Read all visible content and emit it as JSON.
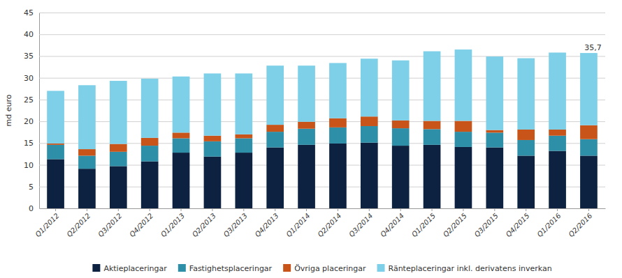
{
  "chart_data": {
    "type": "bar",
    "stacked": true,
    "categories": [
      "Q1/2012",
      "Q2/2012",
      "Q3/2012",
      "Q4/2012",
      "Q1/2013",
      "Q2/2013",
      "Q3/2013",
      "Q4/2013",
      "Q1/2014",
      "Q2/2014",
      "Q3/2014",
      "Q4/2014",
      "Q1/2015",
      "Q2/2015",
      "Q3/2015",
      "Q4/2015",
      "Q1/2016",
      "Q2/2016"
    ],
    "series": [
      {
        "name": "Aktieplaceringar",
        "color": "#0d2240",
        "values": [
          11.3,
          9.1,
          9.7,
          10.8,
          12.8,
          11.9,
          12.8,
          14.0,
          14.6,
          14.9,
          15.1,
          14.4,
          14.6,
          14.1,
          14.0,
          12.1,
          13.2,
          12.1
        ]
      },
      {
        "name": "Fastighetsplaceringar",
        "color": "#2e8fa8",
        "values": [
          3.3,
          3.0,
          3.3,
          3.6,
          3.3,
          3.5,
          3.3,
          3.6,
          3.7,
          3.7,
          3.8,
          4.0,
          3.6,
          3.5,
          3.4,
          3.6,
          3.5,
          3.8
        ]
      },
      {
        "name": "Övriga placeringar",
        "color": "#c8541a",
        "values": [
          0.3,
          1.5,
          1.8,
          1.8,
          1.3,
          1.3,
          0.9,
          1.6,
          1.6,
          2.1,
          2.2,
          1.8,
          1.9,
          2.5,
          0.6,
          2.4,
          1.4,
          3.2
        ]
      },
      {
        "name": "Ränteplaceringar inkl. derivatens inverkan",
        "color": "#7ed0e8",
        "values": [
          12.1,
          14.7,
          14.5,
          13.6,
          12.9,
          14.3,
          14.0,
          13.6,
          12.9,
          12.7,
          13.3,
          13.8,
          16.0,
          16.4,
          16.9,
          16.4,
          17.7,
          16.6
        ]
      }
    ],
    "ylabel": "md euro",
    "ylim": [
      0,
      45
    ],
    "yticks": [
      0,
      5,
      10,
      15,
      20,
      25,
      30,
      35,
      40,
      45
    ],
    "grid": true,
    "legend": "bottom",
    "annotations": [
      {
        "text": "35,7",
        "x": "Q2/2016",
        "y": 35.7
      }
    ]
  }
}
